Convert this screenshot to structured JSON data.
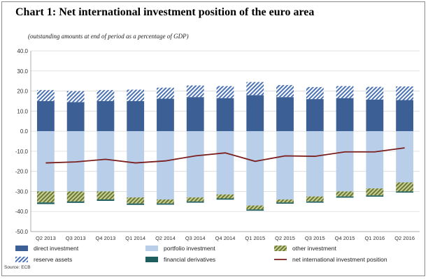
{
  "title": "Chart 1: Net international investment position of the euro area",
  "subtitle": "(outstanding amounts at end of period as a percentage of GDP)",
  "source": "Source: ECB",
  "chart_data": {
    "type": "bar",
    "stacked": true,
    "categories": [
      "Q2 2013",
      "Q3 2013",
      "Q4 2013",
      "Q1 2014",
      "Q2 2014",
      "Q3 2014",
      "Q4 2014",
      "Q1 2015",
      "Q2 2015",
      "Q3 2015",
      "Q4 2015",
      "Q1 2016",
      "Q2 2016"
    ],
    "ylim": [
      -50,
      40
    ],
    "yticks": [
      "40.0",
      "30.0",
      "20.0",
      "10.0",
      "0.0",
      "-10.0",
      "-20.0",
      "-30.0",
      "-40.0",
      "-50.0"
    ],
    "grid": true,
    "legend_position": "bottom",
    "series": [
      {
        "name": "direct investment",
        "color": "#3c5f96",
        "pattern": "solid",
        "values": [
          15.0,
          14.5,
          15.0,
          15.0,
          16.2,
          17.0,
          16.5,
          18.0,
          17.0,
          16.0,
          16.5,
          15.8,
          15.5
        ]
      },
      {
        "name": "portfolio investment",
        "color": "#b9cfe9",
        "pattern": "solid",
        "values": [
          -30.0,
          -30.0,
          -30.0,
          -33.0,
          -34.0,
          -33.0,
          -31.5,
          -37.0,
          -34.0,
          -32.5,
          -30.0,
          -28.5,
          -25.5
        ]
      },
      {
        "name": "other investment",
        "color": "#7f8f3c",
        "pattern": "hatch",
        "values": [
          -5.5,
          -5.0,
          -4.0,
          -3.0,
          -2.0,
          -2.0,
          -2.0,
          -2.0,
          -1.5,
          -2.5,
          -2.5,
          -3.5,
          -4.5
        ]
      },
      {
        "name": "reserve assets",
        "color": "#4a72b5",
        "pattern": "hatch",
        "values": [
          5.5,
          5.5,
          5.5,
          5.7,
          5.5,
          5.8,
          6.0,
          6.5,
          6.0,
          6.0,
          6.0,
          6.3,
          6.8
        ]
      },
      {
        "name": "financial derivatives",
        "color": "#1f5e5e",
        "pattern": "solid",
        "values": [
          -0.8,
          -0.7,
          -0.7,
          -0.7,
          -0.6,
          -0.6,
          -0.6,
          -0.6,
          -0.6,
          -0.6,
          -0.6,
          -0.6,
          -0.6
        ]
      },
      {
        "name": "net international investment position",
        "type": "line",
        "color": "#7b1e1e",
        "values": [
          -15.8,
          -15.3,
          -14.0,
          -15.8,
          -14.8,
          -12.3,
          -10.8,
          -15.0,
          -12.3,
          -12.5,
          -10.3,
          -10.3,
          -8.3
        ]
      }
    ]
  }
}
